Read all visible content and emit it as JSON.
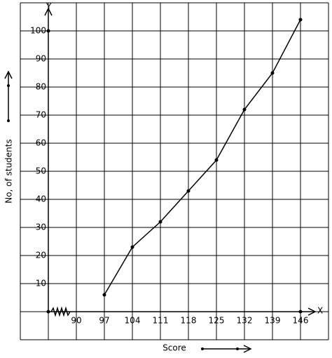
{
  "chart_data": {
    "type": "line",
    "x_label": "Score",
    "y_label": "No, of students",
    "x_axis_name": "X",
    "y_axis_name": "Y",
    "x": [
      97,
      104,
      111,
      118,
      125,
      132,
      139,
      146
    ],
    "series": [
      {
        "color": "#000000",
        "values": [
          6,
          23,
          32,
          43,
          54,
          72,
          85,
          104
        ]
      }
    ],
    "xlim": [
      83,
      153
    ],
    "xticks": [
      90,
      97,
      104,
      111,
      118,
      125,
      132,
      139,
      146
    ],
    "ylim": [
      -10,
      110
    ],
    "yticks": [
      10,
      20,
      30,
      40,
      50,
      60,
      70,
      80,
      90,
      100
    ],
    "grid": true
  }
}
